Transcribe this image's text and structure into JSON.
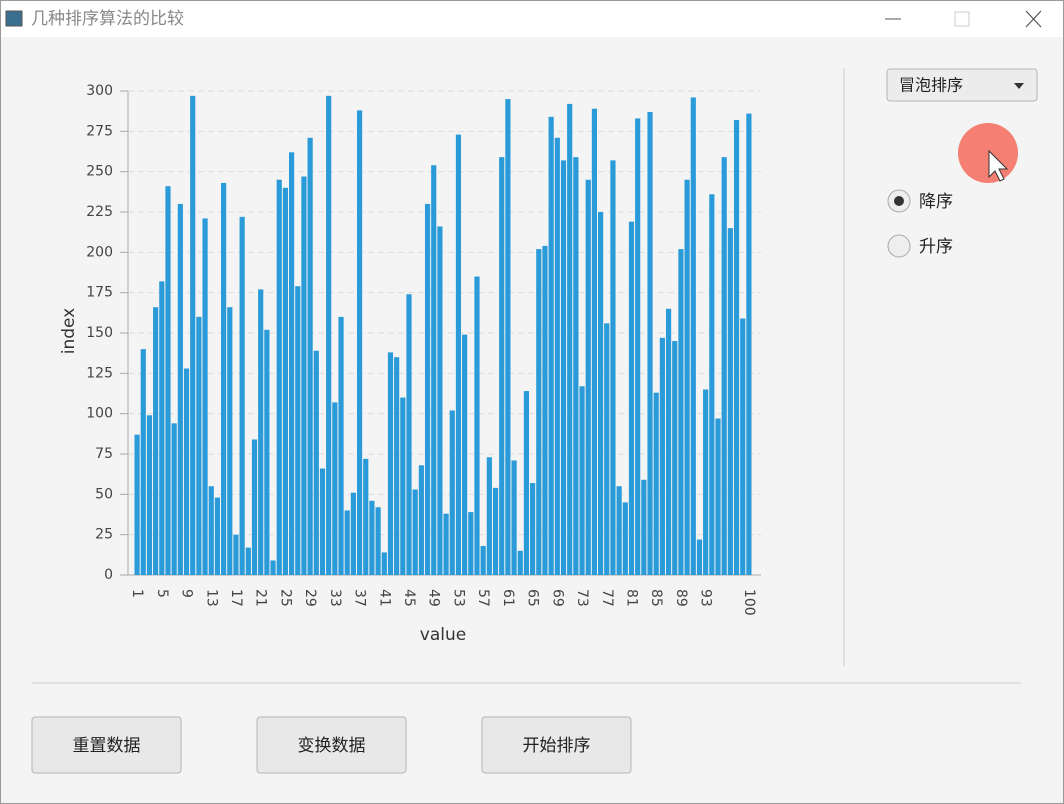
{
  "window": {
    "title": "几种排序算法的比较"
  },
  "controls": {
    "combo": "冒泡排序",
    "radios": [
      {
        "label": "降序",
        "checked": true
      },
      {
        "label": "升序",
        "checked": false
      }
    ]
  },
  "buttons": [
    "重置数据",
    "变换数据",
    "开始排序"
  ],
  "chart_data": {
    "type": "bar",
    "xlabel": "value",
    "ylabel": "index",
    "color": "#2a9bd8",
    "grid": true,
    "ylim": [
      0,
      300
    ],
    "yticks": [
      0,
      25,
      50,
      75,
      100,
      125,
      150,
      175,
      200,
      225,
      250,
      275,
      300
    ],
    "categories": [
      "1",
      null,
      null,
      null,
      "5",
      null,
      null,
      null,
      "9",
      null,
      null,
      null,
      "13",
      null,
      null,
      null,
      "17",
      null,
      null,
      null,
      "21",
      null,
      null,
      null,
      "25",
      null,
      null,
      null,
      "29",
      null,
      null,
      null,
      "33",
      null,
      null,
      null,
      "37",
      null,
      null,
      null,
      "41",
      null,
      null,
      null,
      "45",
      null,
      null,
      null,
      "49",
      null,
      null,
      null,
      "53",
      null,
      null,
      null,
      "57",
      null,
      null,
      null,
      "61",
      null,
      null,
      null,
      "65",
      null,
      null,
      null,
      "69",
      null,
      null,
      null,
      "73",
      null,
      null,
      null,
      "77",
      null,
      null,
      null,
      "81",
      null,
      null,
      null,
      "85",
      null,
      null,
      null,
      "89",
      null,
      null,
      null,
      "93",
      null,
      null,
      null,
      null,
      null,
      null,
      "100"
    ],
    "values": [
      87,
      140,
      99,
      166,
      182,
      241,
      94,
      230,
      128,
      297,
      160,
      221,
      55,
      48,
      243,
      166,
      25,
      222,
      17,
      84,
      177,
      152,
      9,
      245,
      240,
      262,
      179,
      247,
      271,
      139,
      66,
      297,
      107,
      160,
      40,
      51,
      288,
      72,
      46,
      42,
      14,
      138,
      135,
      110,
      174,
      53,
      68,
      230,
      254,
      216,
      38,
      102,
      273,
      149,
      39,
      185,
      18,
      73,
      54,
      259,
      295,
      71,
      15,
      114,
      57,
      202,
      204,
      284,
      271,
      257,
      292,
      259,
      117,
      245,
      289,
      225,
      156,
      257,
      55,
      45,
      219,
      283,
      59,
      287,
      113,
      147,
      165,
      145,
      202,
      245,
      296,
      22,
      115,
      236,
      97,
      259,
      215,
      282,
      159,
      286
    ]
  }
}
